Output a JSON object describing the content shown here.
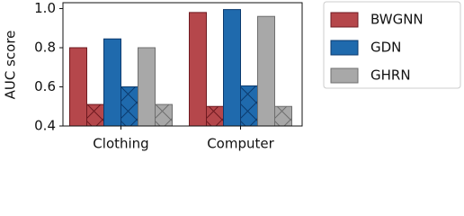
{
  "chart_data": {
    "type": "bar",
    "y_label": "AUC score",
    "categories": [
      "Clothing",
      "Computer"
    ],
    "series": [
      {
        "name": "BWGNN",
        "color": "#b5474b",
        "edge": "#6e1a20",
        "values": [
          0.8,
          0.98
        ],
        "hatch_values": [
          0.51,
          0.5
        ]
      },
      {
        "name": "GDN",
        "color": "#1f6aad",
        "edge": "#0b3a6e",
        "values": [
          0.845,
          0.995
        ],
        "hatch_values": [
          0.6,
          0.605
        ]
      },
      {
        "name": "GHRN",
        "color": "#a8a8a8",
        "edge": "#6e6e6e",
        "values": [
          0.8,
          0.96
        ],
        "hatch_values": [
          0.51,
          0.5
        ]
      }
    ],
    "ylim": [
      0.4,
      1.03
    ],
    "yticks": [
      0.4,
      0.6,
      0.8,
      {
        "value": 1,
        "label": "1.0"
      }
    ],
    "legend": "outside-right"
  }
}
